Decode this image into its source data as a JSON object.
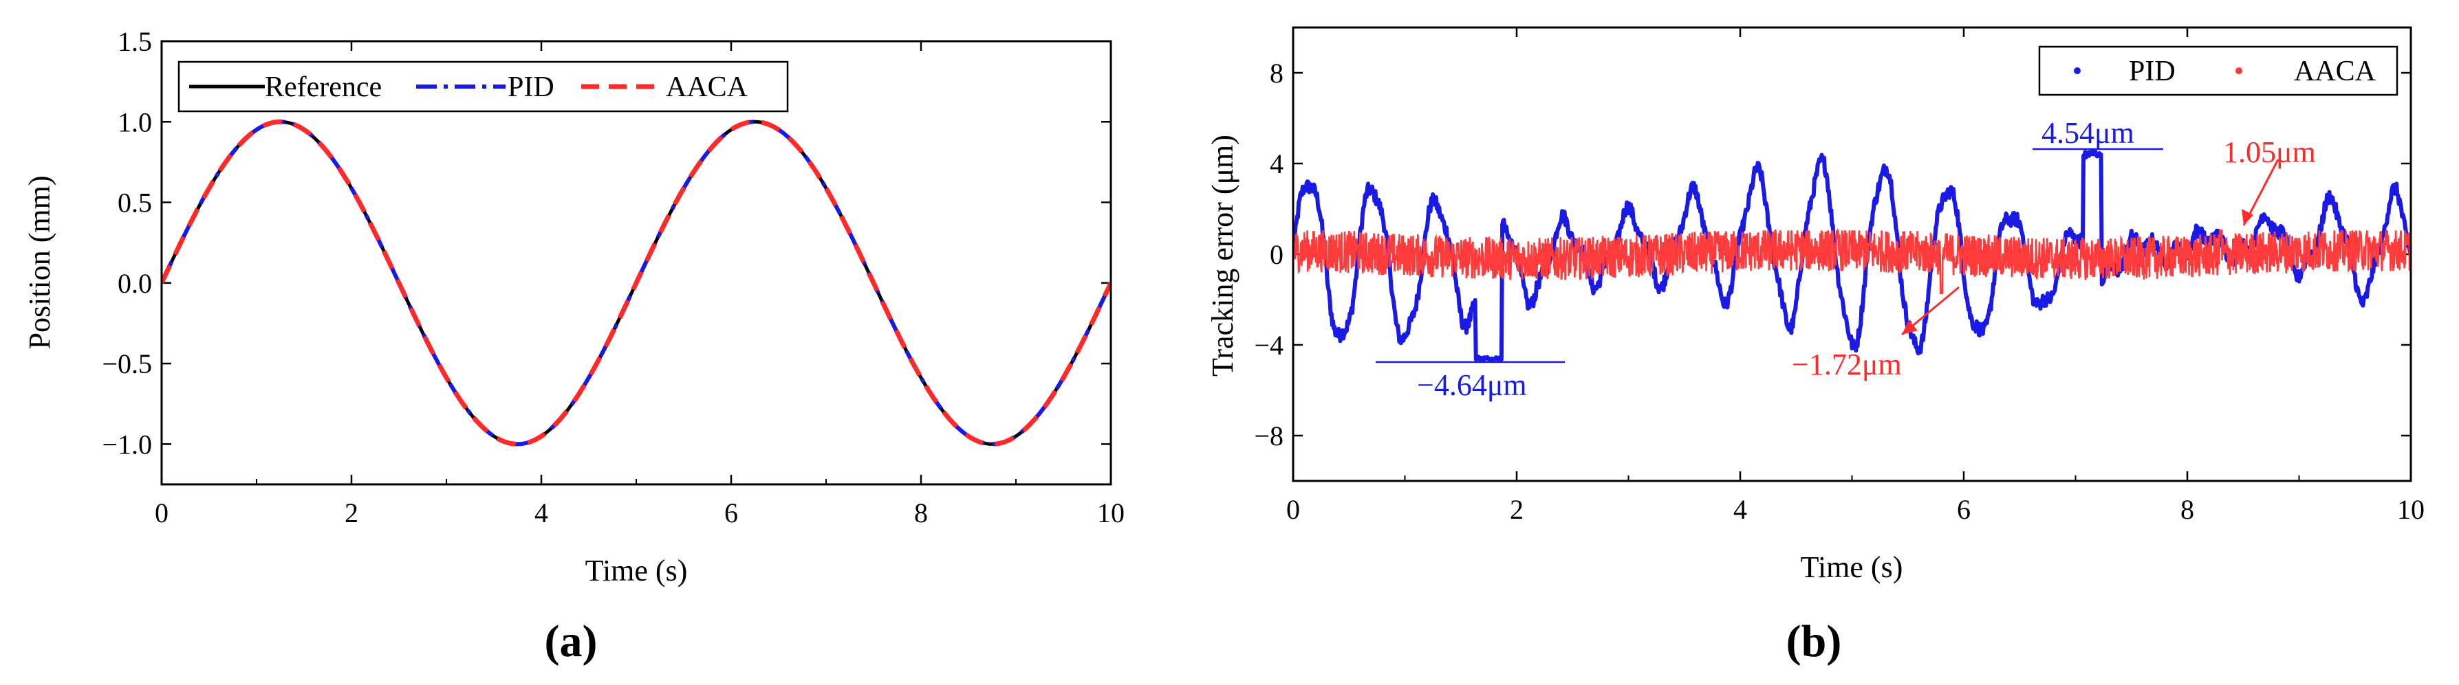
{
  "chart_data": [
    {
      "panel": "(a)",
      "type": "line",
      "xlabel": "Time (s)",
      "ylabel": "Position (mm)",
      "xlim": [
        0,
        10
      ],
      "ylim": [
        -1.25,
        1.5
      ],
      "xticks": [
        0,
        2,
        4,
        6,
        8,
        10
      ],
      "yticks": [
        -1.0,
        -0.5,
        0.0,
        0.5,
        1.0,
        1.5
      ],
      "ytick_labels": [
        "−1.0",
        "−0.5",
        "0.0",
        "0.5",
        "1.0",
        "1.5"
      ],
      "legend_position": "top-left",
      "series": [
        {
          "name": "Reference",
          "style": "solid",
          "color": "#000000",
          "function": "sin(2*pi*0.2*t)",
          "amplitude": 1.0,
          "frequency_hz": 0.2
        },
        {
          "name": "PID",
          "style": "dash-dot",
          "color": "#1a1ae6",
          "function": "sin(2*pi*0.2*t)",
          "amplitude": 1.0,
          "frequency_hz": 0.2
        },
        {
          "name": "AACA",
          "style": "dash",
          "color": "#ff2a2a",
          "function": "sin(2*pi*0.2*t)",
          "amplitude": 1.0,
          "frequency_hz": 0.2
        }
      ]
    },
    {
      "panel": "(b)",
      "type": "line",
      "xlabel": "Time (s)",
      "ylabel": "Tracking error (μm)",
      "xlim": [
        0,
        10
      ],
      "ylim": [
        -10,
        10
      ],
      "xticks": [
        0,
        2,
        4,
        6,
        8,
        10
      ],
      "yticks": [
        -8,
        -4,
        0,
        4,
        8
      ],
      "ytick_labels": [
        "−8",
        "−4",
        "0",
        "4",
        "8"
      ],
      "legend_position": "top-right",
      "series": [
        {
          "name": "PID",
          "marker": "dot",
          "color": "#1a1ae6",
          "approx_oscillation_hz": 1.75,
          "peak_max": 4.54,
          "peak_min": -4.64,
          "peak_max_time": 7.15,
          "peak_min_time": 1.75
        },
        {
          "name": "AACA",
          "marker": "dot",
          "color": "#ff3b3b",
          "peak_max": 1.05,
          "peak_min": -1.72,
          "peak_max_time": 8.3,
          "peak_min_time": 5.8
        }
      ],
      "annotations": [
        {
          "text": "4.54μm",
          "value": 4.54,
          "color": "#1a1ae6"
        },
        {
          "text": "−4.64μm",
          "value": -4.64,
          "color": "#1a1ae6"
        },
        {
          "text": "1.05μm",
          "value": 1.05,
          "color": "#ff2a2a"
        },
        {
          "text": "−1.72μm",
          "value": -1.72,
          "color": "#ff2a2a"
        }
      ]
    }
  ]
}
